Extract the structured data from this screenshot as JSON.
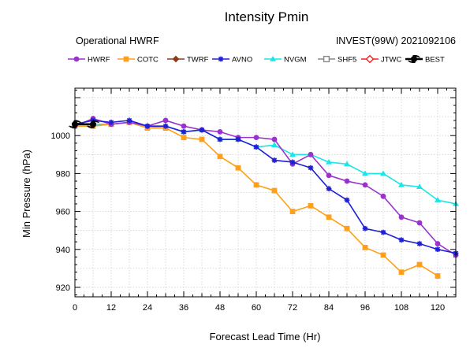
{
  "chart_data": {
    "type": "line",
    "title": "Intensity Pmin",
    "subtitle_left": "Operational HWRF",
    "subtitle_right": "INVEST(99W) 2021092106",
    "xlabel": "Forecast Lead Time (Hr)",
    "ylabel": "Min Pressure (hPa)",
    "xlim": [
      0,
      126
    ],
    "ylim": [
      915,
      1025
    ],
    "xticks": [
      0,
      12,
      24,
      36,
      48,
      60,
      72,
      84,
      96,
      108,
      120
    ],
    "yticks": [
      920,
      940,
      960,
      980,
      1000
    ],
    "grid": true,
    "legend_position": "top",
    "series": [
      {
        "name": "HWRF",
        "color": "#9933cc",
        "marker": "circle",
        "x": [
          0,
          6,
          12,
          18,
          24,
          30,
          36,
          42,
          48,
          54,
          60,
          66,
          72,
          78,
          84,
          90,
          96,
          102,
          108,
          114,
          120,
          126
        ],
        "y": [
          1005,
          1009,
          1006,
          1007,
          1005,
          1008,
          1005,
          1003,
          1002,
          999,
          999,
          998,
          985,
          990,
          979,
          976,
          974,
          968,
          957,
          954,
          943,
          937
        ]
      },
      {
        "name": "COTC",
        "color": "#ff9f1a",
        "marker": "square",
        "x": [
          0,
          6,
          12,
          18,
          24,
          30,
          36,
          42,
          48,
          54,
          60,
          66,
          72,
          78,
          84,
          90,
          96,
          102,
          108,
          114,
          120
        ],
        "y": [
          1005,
          1005,
          1006,
          1007,
          1004,
          1004,
          999,
          998,
          989,
          983,
          974,
          971,
          960,
          963,
          957,
          951,
          941,
          937,
          928,
          932,
          926
        ]
      },
      {
        "name": "TWRF",
        "color": "#8b3a1a",
        "marker": "diamond",
        "x": [],
        "y": []
      },
      {
        "name": "AVNO",
        "color": "#1f1fd6",
        "marker": "star",
        "x": [
          0,
          6,
          12,
          18,
          24,
          30,
          36,
          42,
          48,
          54,
          60,
          66,
          72,
          78,
          84,
          90,
          96,
          102,
          108,
          114,
          120,
          126
        ],
        "y": [
          1006,
          1008,
          1007,
          1008,
          1005,
          1005,
          1002,
          1003,
          998,
          998,
          994,
          987,
          986,
          983,
          972,
          966,
          951,
          949,
          945,
          943,
          940,
          938
        ]
      },
      {
        "name": "NVGM",
        "color": "#19e6e6",
        "marker": "triangle",
        "x": [
          0,
          6,
          12,
          18,
          24,
          30,
          36,
          42,
          48,
          54,
          60,
          66,
          72,
          78,
          84,
          90,
          96,
          102,
          108,
          114,
          120,
          126
        ],
        "y": [
          1006,
          1006,
          1006,
          1007,
          1004,
          1005,
          1002,
          1003,
          998,
          998,
          994,
          995,
          990,
          990,
          986,
          985,
          980,
          980,
          974,
          973,
          966,
          964
        ]
      },
      {
        "name": "SHF5",
        "color": "#888888",
        "marker": "square-open",
        "x": [],
        "y": []
      },
      {
        "name": "JTWC",
        "color": "#ee2222",
        "marker": "diamond-open",
        "x": [],
        "y": []
      },
      {
        "name": "BEST",
        "color": "#000000",
        "marker": "hurricane",
        "x": [
          0,
          6
        ],
        "y": [
          1006,
          1006
        ]
      }
    ]
  }
}
